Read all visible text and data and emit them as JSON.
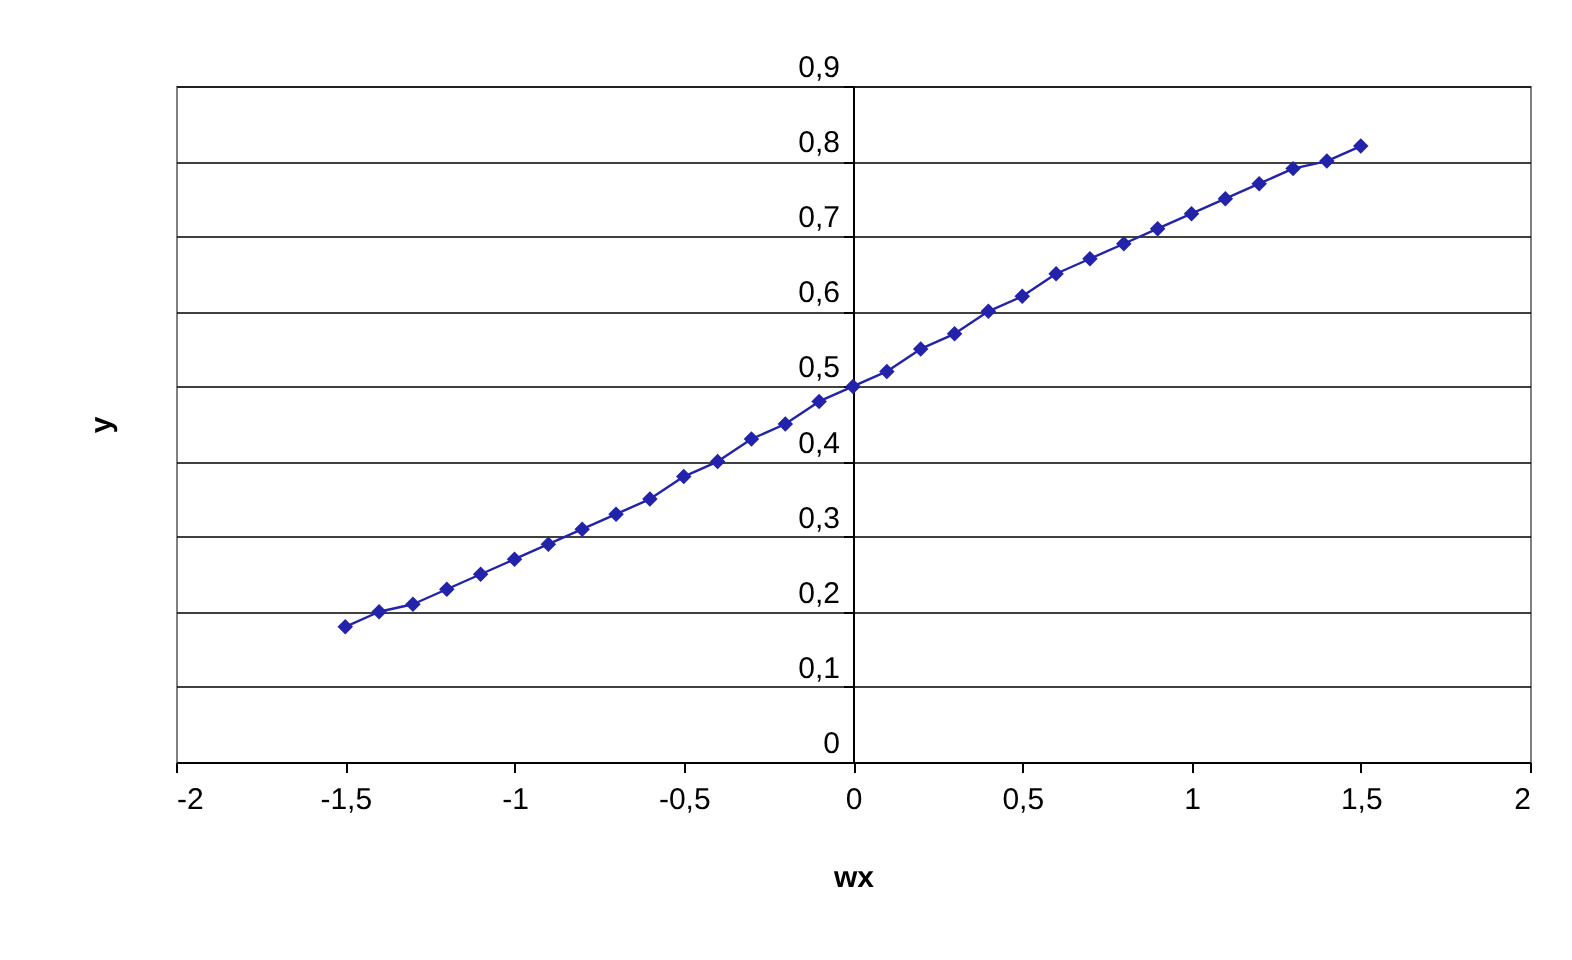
{
  "chart_data": {
    "type": "line",
    "xlabel": "wx",
    "ylabel": "y",
    "x": [
      -1.5,
      -1.4,
      -1.3,
      -1.2,
      -1.1,
      -1.0,
      -0.9,
      -0.8,
      -0.7,
      -0.6,
      -0.5,
      -0.4,
      -0.3,
      -0.2,
      -0.1,
      0,
      0.1,
      0.2,
      0.3,
      0.4,
      0.5,
      0.6,
      0.7,
      0.8,
      0.9,
      1.0,
      1.1,
      1.2,
      1.3,
      1.4,
      1.5
    ],
    "series": [
      {
        "color": "#2222aa",
        "values": [
          0.18,
          0.2,
          0.21,
          0.23,
          0.25,
          0.27,
          0.29,
          0.31,
          0.33,
          0.35,
          0.38,
          0.4,
          0.43,
          0.45,
          0.48,
          0.5,
          0.52,
          0.55,
          0.57,
          0.6,
          0.62,
          0.65,
          0.67,
          0.69,
          0.71,
          0.73,
          0.75,
          0.77,
          0.79,
          0.8,
          0.82
        ]
      }
    ],
    "xlim": [
      -2,
      2
    ],
    "ylim": [
      0,
      0.9
    ],
    "xticks": [
      -2,
      {
        "value": -1.5,
        "label": "-1,5"
      },
      -1,
      {
        "value": -0.5,
        "label": "-0,5"
      },
      0,
      {
        "value": 0.5,
        "label": "0,5"
      },
      1,
      {
        "value": 1.5,
        "label": "1,5"
      },
      2
    ],
    "yticks": [
      0,
      {
        "value": 0.1,
        "label": "0,1"
      },
      {
        "value": 0.2,
        "label": "0,2"
      },
      {
        "value": 0.3,
        "label": "0,3"
      },
      {
        "value": 0.4,
        "label": "0,4"
      },
      {
        "value": 0.5,
        "label": "0,5"
      },
      {
        "value": 0.6,
        "label": "0,6"
      },
      {
        "value": 0.7,
        "label": "0,7"
      },
      {
        "value": 0.8,
        "label": "0,8"
      },
      {
        "value": 0.9,
        "label": "0,9"
      }
    ],
    "grid": "y",
    "marker": "diamond",
    "line_style": "solid"
  }
}
